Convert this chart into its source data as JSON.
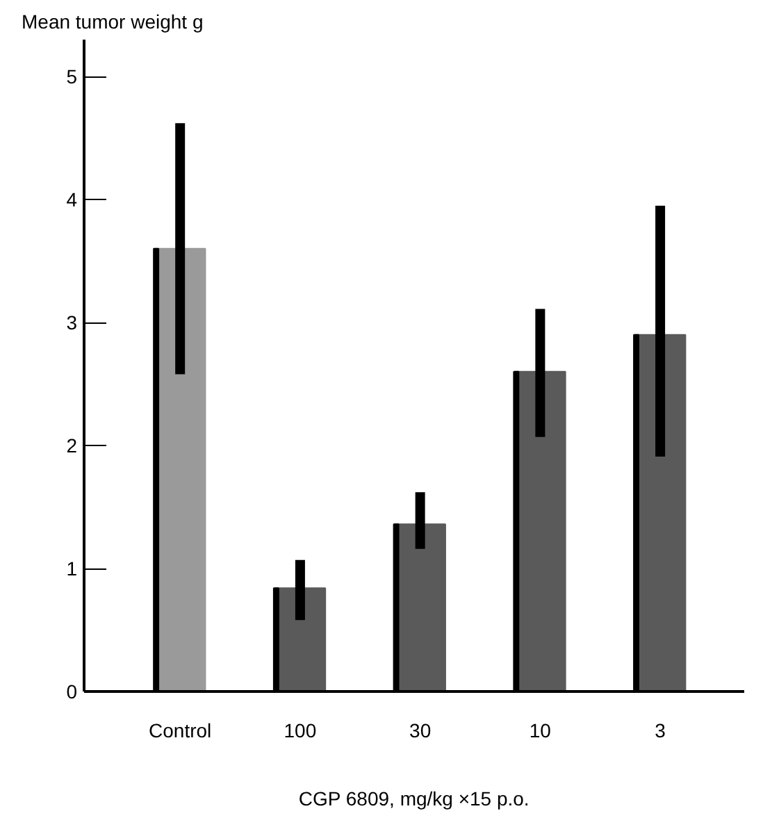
{
  "chart_data": {
    "type": "bar",
    "ylabel": "Mean tumor weight g",
    "xlabel": "CGP 6809, mg/kg ×15 p.o.",
    "categories": [
      "Control",
      "100",
      "30",
      "10",
      "3"
    ],
    "values": [
      3.6,
      0.84,
      1.36,
      2.6,
      2.9
    ],
    "errors": [
      [
        2.58,
        4.62
      ],
      [
        0.58,
        1.07
      ],
      [
        1.16,
        1.62
      ],
      [
        2.07,
        3.11
      ],
      [
        1.91,
        3.95
      ]
    ],
    "colors": [
      "#9a9a9a",
      "#5a5a5a",
      "#5a5a5a",
      "#5a5a5a",
      "#5a5a5a"
    ],
    "ylim": [
      0,
      5.3
    ],
    "yticks": [
      0,
      1,
      2,
      3,
      4,
      5
    ],
    "grid": false
  }
}
